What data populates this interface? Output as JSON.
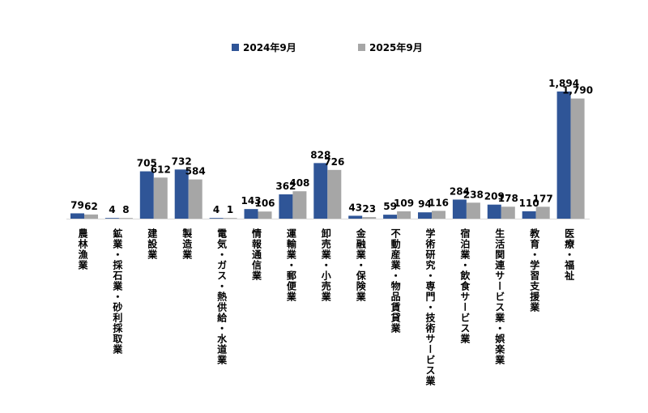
{
  "chart_data": {
    "type": "bar",
    "title": "",
    "xlabel": "",
    "ylabel": "",
    "ylim": [
      0,
      1894
    ],
    "grid": false,
    "legend_position": "top",
    "categories": [
      "農林漁業",
      "鉱業・採石業・砂利採取業",
      "建設業",
      "製造業",
      "電気・ガス・熱供給・水道業",
      "情報通信業",
      "運輸業・郵便業",
      "卸売業・小売業",
      "金融業・保険業",
      "不動産業・物品賃貸業",
      "学術研究・専門・技術サービス業",
      "宿泊業・飲食サービス業",
      "生活関連サービス業・娯楽業",
      "教育・学習支援業",
      "医療・福祉"
    ],
    "series": [
      {
        "name": "2024年9月",
        "color": "#2F5597",
        "values": [
          79,
          4,
          705,
          732,
          4,
          143,
          362,
          828,
          43,
          59,
          94,
          284,
          209,
          110,
          1894
        ],
        "labels": [
          "79",
          "4",
          "705",
          "732",
          "4",
          "143",
          "362",
          "828",
          "43",
          "59",
          "94",
          "284",
          "209",
          "110",
          "1,894"
        ]
      },
      {
        "name": "2025年9月",
        "color": "#A6A6A6",
        "values": [
          62,
          8,
          612,
          584,
          1,
          106,
          408,
          726,
          23,
          109,
          116,
          238,
          178,
          177,
          1790
        ],
        "labels": [
          "62",
          "8",
          "612",
          "584",
          "1",
          "106",
          "408",
          "726",
          "23",
          "109",
          "116",
          "238",
          "178",
          "177",
          "1,790"
        ]
      }
    ]
  }
}
